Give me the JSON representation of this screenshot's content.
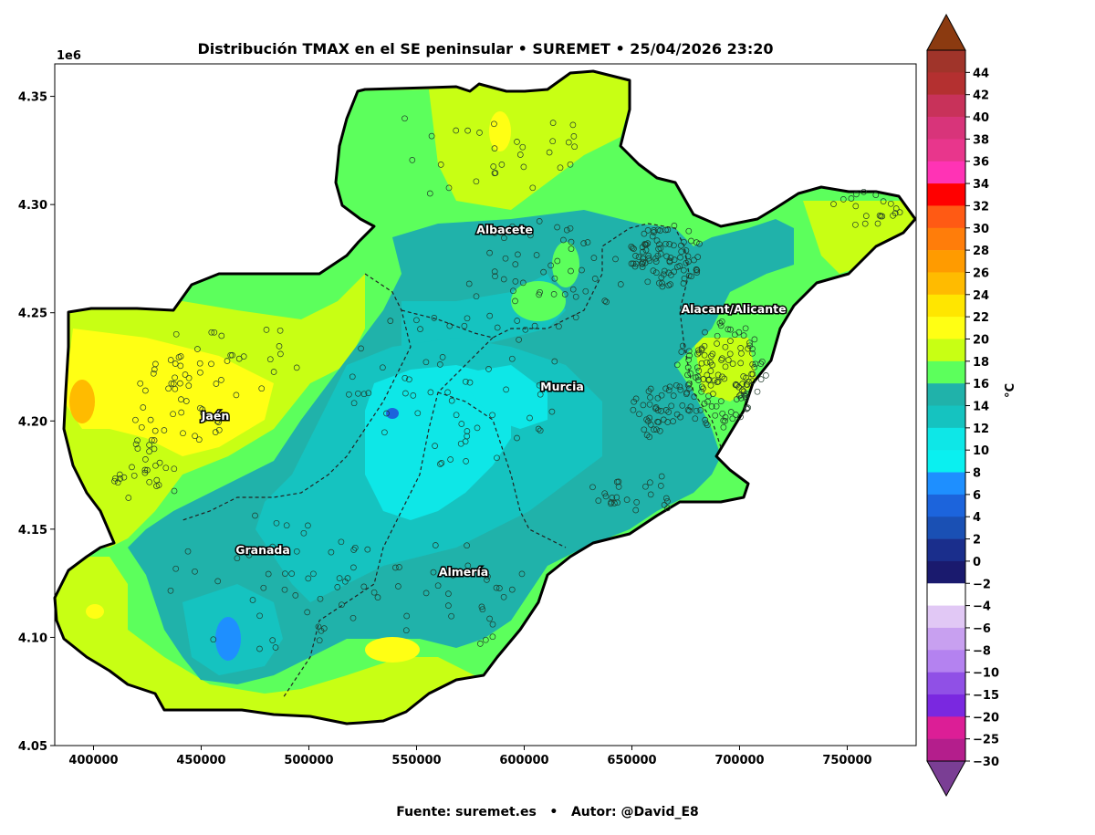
{
  "title": "Distribución TMAX en el SE peninsular • SUREMET • 25/04/2026 23:20",
  "footer": "Fuente: suremet.es   •   Autor: @David_E8",
  "axes": {
    "y_offset_label": "1e6",
    "x_ticks": [
      "400000",
      "450000",
      "500000",
      "550000",
      "600000",
      "650000",
      "700000",
      "750000"
    ],
    "y_ticks": [
      "4.05",
      "4.10",
      "4.15",
      "4.20",
      "4.25",
      "4.30",
      "4.35"
    ],
    "x_range": [
      382000,
      782000
    ],
    "y_range": [
      4050000,
      4365000
    ]
  },
  "colorbar": {
    "unit": "°C",
    "levels": [
      "44",
      "42",
      "40",
      "38",
      "36",
      "34",
      "32",
      "30",
      "28",
      "26",
      "24",
      "22",
      "20",
      "18",
      "16",
      "14",
      "12",
      "10",
      "8",
      "6",
      "4",
      "2",
      "0",
      "−2",
      "−4",
      "−6",
      "−8",
      "−10",
      "−15",
      "−20",
      "−25",
      "−30"
    ],
    "colors": [
      "#a0342a",
      "#b43030",
      "#c8325a",
      "#d8347a",
      "#e8368c",
      "#ff33b5",
      "#ff0000",
      "#ff5a14",
      "#ff7d0a",
      "#ff9b00",
      "#ffbb00",
      "#ffe600",
      "#ffff14",
      "#c8ff14",
      "#5cff5c",
      "#20b2aa",
      "#15c3c0",
      "#0ee7e7",
      "#0af0f0",
      "#1e8fff",
      "#1c64dc",
      "#1a50b4",
      "#1a2e8c",
      "#1a1a6e",
      "#ffffff",
      "#e1c8f5",
      "#c8a0f0",
      "#b482f0",
      "#9050e6",
      "#7a28e0",
      "#dc1e96",
      "#b41e8c"
    ]
  },
  "map": {
    "type": "filled temperature contour map with station markers",
    "province_labels": [
      "Albacete",
      "Alacant/Alicante",
      "Murcia",
      "Jaén",
      "Granada",
      "Almería"
    ],
    "colors": {
      "green": "#5cff5c",
      "lime": "#c8ff14",
      "yellow": "#ffff14",
      "teal": "#20b2aa",
      "aqua": "#15c3c0",
      "cyan": "#0ee7e7",
      "blue": "#1e8fff"
    }
  }
}
